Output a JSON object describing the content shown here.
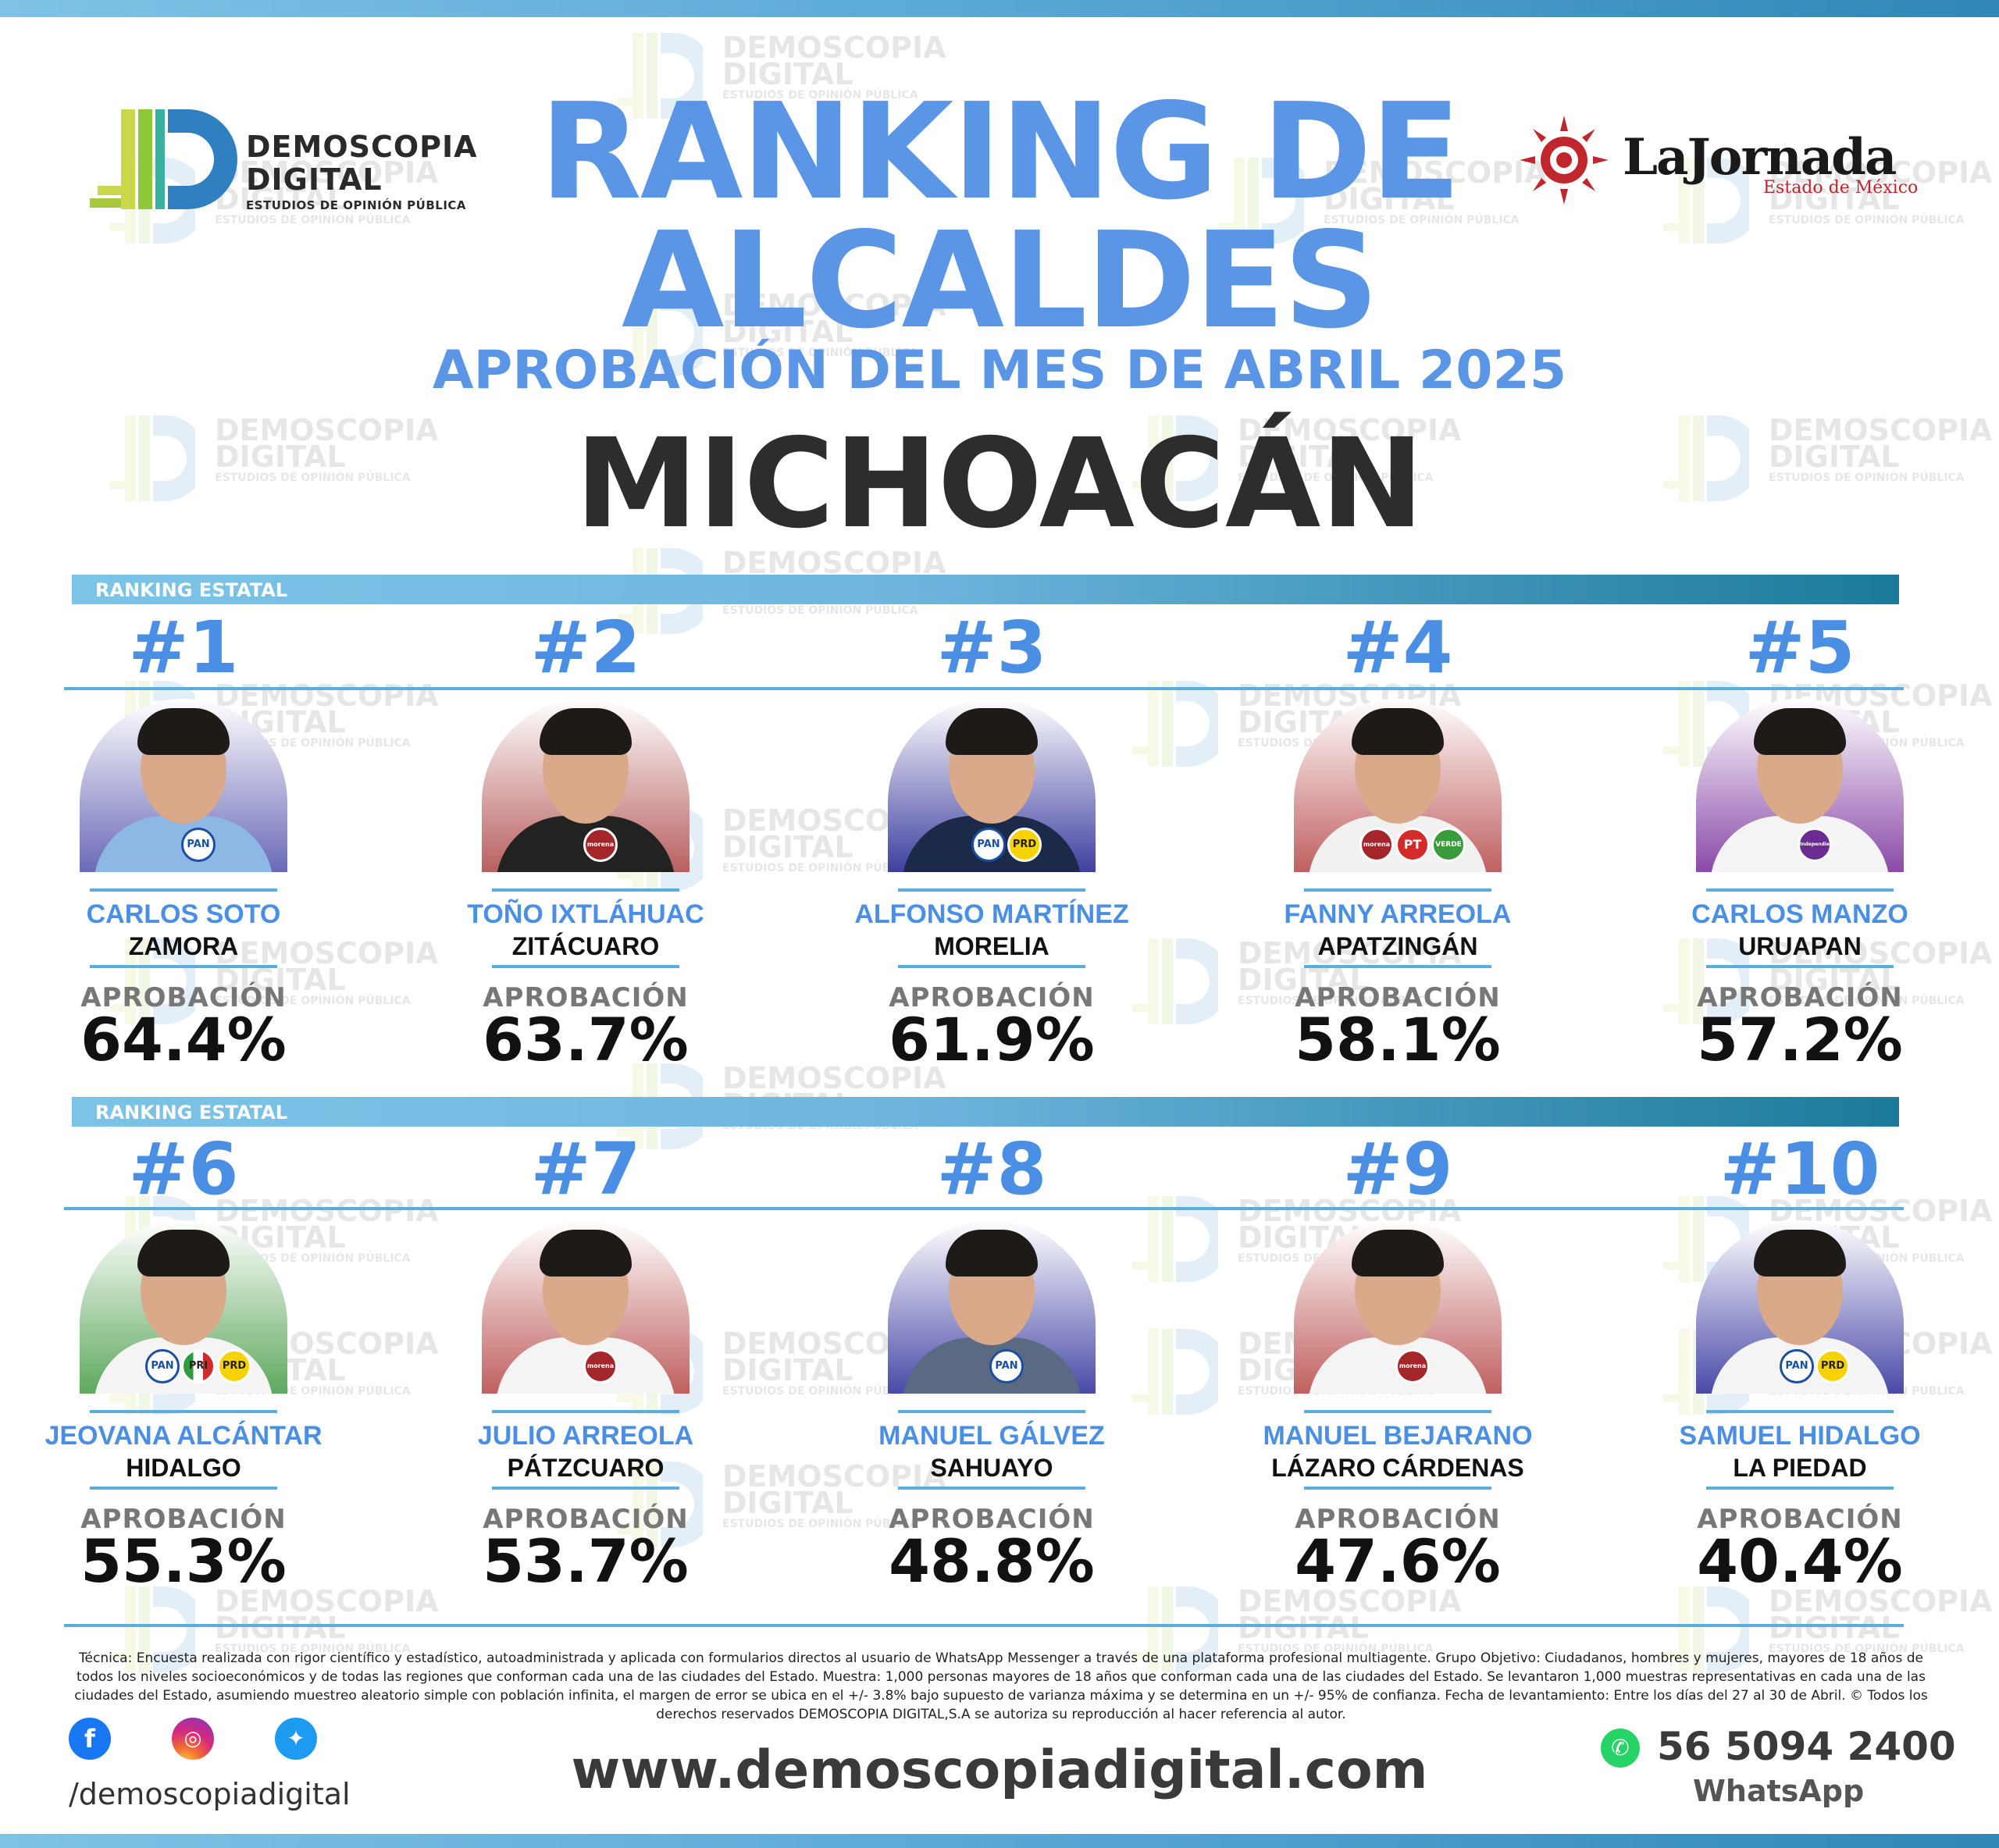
{
  "header": {
    "brand_left": {
      "line1": "DEMOSCOPIA",
      "line2": "DIGITAL",
      "tagline": "ESTUDIOS DE OPINIÓN PÚBLICA"
    },
    "brand_right": {
      "name": "LaJornada",
      "sub": "Estado de México"
    },
    "title_line1": "RANKING DE",
    "title_line2": "ALCALDES",
    "subtitle": "APROBACIÓN DEL MES DE ABRIL 2025",
    "state": "MICHOACÁN"
  },
  "watermark": {
    "line1": "DEMOSCOPIA",
    "line2": "DIGITAL",
    "line3": "ESTUDIOS DE OPINIÓN PÚBLICA"
  },
  "sections": [
    {
      "label": "RANKING ESTATAL"
    },
    {
      "label": "RANKING ESTATAL"
    }
  ],
  "approval_label": "APROBACIÓN",
  "candidates": [
    {
      "rank": "#1",
      "name": "CARLOS SOTO",
      "city": "ZAMORA",
      "approval": "64.4%",
      "bg": "#6a6ab8",
      "shirt": "#8db8e6",
      "parties": [
        {
          "cls": "p-pan",
          "label": "PAN"
        }
      ]
    },
    {
      "rank": "#2",
      "name": "TOÑO IXTLÁHUAC",
      "city": "ZITÁCUARO",
      "approval": "63.7%",
      "bg": "#b86060",
      "shirt": "#222222",
      "parties": [
        {
          "cls": "p-morena",
          "label": "morena"
        }
      ]
    },
    {
      "rank": "#3",
      "name": "ALFONSO MARTÍNEZ",
      "city": "MORELIA",
      "approval": "61.9%",
      "bg": "#3f3fa0",
      "shirt": "#1c2a4a",
      "parties": [
        {
          "cls": "p-pan",
          "label": "PAN"
        },
        {
          "cls": "p-prd",
          "label": "PRD"
        }
      ]
    },
    {
      "rank": "#4",
      "name": "FANNY ARREOLA",
      "city": "APATZINGÁN",
      "approval": "58.1%",
      "bg": "#c06060",
      "shirt": "#f1f1f1",
      "parties": [
        {
          "cls": "p-morena",
          "label": "morena"
        },
        {
          "cls": "p-pt",
          "label": "PT"
        },
        {
          "cls": "p-verde",
          "label": "VERDE"
        }
      ]
    },
    {
      "rank": "#5",
      "name": "CARLOS MANZO",
      "city": "URUAPAN",
      "approval": "57.2%",
      "bg": "#8a4aa8",
      "shirt": "#f4f4f4",
      "parties": [
        {
          "cls": "p-ind",
          "label": "Independiente"
        }
      ]
    },
    {
      "rank": "#6",
      "name": "JEOVANA ALCÁNTAR",
      "city": "HIDALGO",
      "approval": "55.3%",
      "bg": "#5ea85e",
      "shirt": "#f4f4f4",
      "parties": [
        {
          "cls": "p-pan",
          "label": "PAN"
        },
        {
          "cls": "p-pri",
          "label": "PRI"
        },
        {
          "cls": "p-prd",
          "label": "PRD"
        }
      ]
    },
    {
      "rank": "#7",
      "name": "JULIO ARREOLA",
      "city": "PÁTZCUARO",
      "approval": "53.7%",
      "bg": "#c06060",
      "shirt": "#f4f4f4",
      "parties": [
        {
          "cls": "p-morena",
          "label": "morena"
        }
      ]
    },
    {
      "rank": "#8",
      "name": "MANUEL GÁLVEZ",
      "city": "SAHUAYO",
      "approval": "48.8%",
      "bg": "#4a4aa8",
      "shirt": "#5a6a82",
      "parties": [
        {
          "cls": "p-pan",
          "label": "PAN"
        }
      ]
    },
    {
      "rank": "#9",
      "name": "MANUEL BEJARANO",
      "city": "LÁZARO CÁRDENAS",
      "approval": "47.6%",
      "bg": "#c06060",
      "shirt": "#f4f4f4",
      "parties": [
        {
          "cls": "p-morena",
          "label": "morena"
        }
      ]
    },
    {
      "rank": "#10",
      "name": "SAMUEL HIDALGO",
      "city": "LA PIEDAD",
      "approval": "40.4%",
      "bg": "#4a4aa8",
      "shirt": "#f4f4f4",
      "parties": [
        {
          "cls": "p-pan",
          "label": "PAN"
        },
        {
          "cls": "p-prd",
          "label": "PRD"
        }
      ]
    }
  ],
  "footer": {
    "disclaimer": "Técnica: Encuesta realizada con rigor científico y estadístico, autoadministrada y aplicada con formularios directos al usuario de WhatsApp Messenger a través de una plataforma profesional multiagente. Grupo Objetivo: Ciudadanos, hombres y mujeres, mayores de 18 años de todos los niveles socioeconómicos y de todas las regiones que conforman cada una de las ciudades del Estado. Muestra: 1,000 personas mayores de 18 años que conforman cada una de las ciudades del Estado. Se levantaron 1,000 muestras representativas en cada una de las ciudades del Estado, asumiendo muestreo aleatorio simple con población infinita, el margen de error se ubica en el +/- 3.8% bajo supuesto de varianza máxima y se determina en un +/- 95% de confianza. Fecha de levantamiento: Entre los días del 27 al 30 de Abril. © Todos los derechos reservados DEMOSCOPIA DIGITAL,S.A se autoriza su reproducción al hacer referencia al autor.",
    "social_handle": "/demoscopiadigital",
    "website": "www.demoscopiadigital.com",
    "phone": "56 5094 2400",
    "phone_label": "WhatsApp",
    "icons": [
      "facebook-icon",
      "instagram-icon",
      "twitter-icon",
      "whatsapp-icon"
    ]
  }
}
